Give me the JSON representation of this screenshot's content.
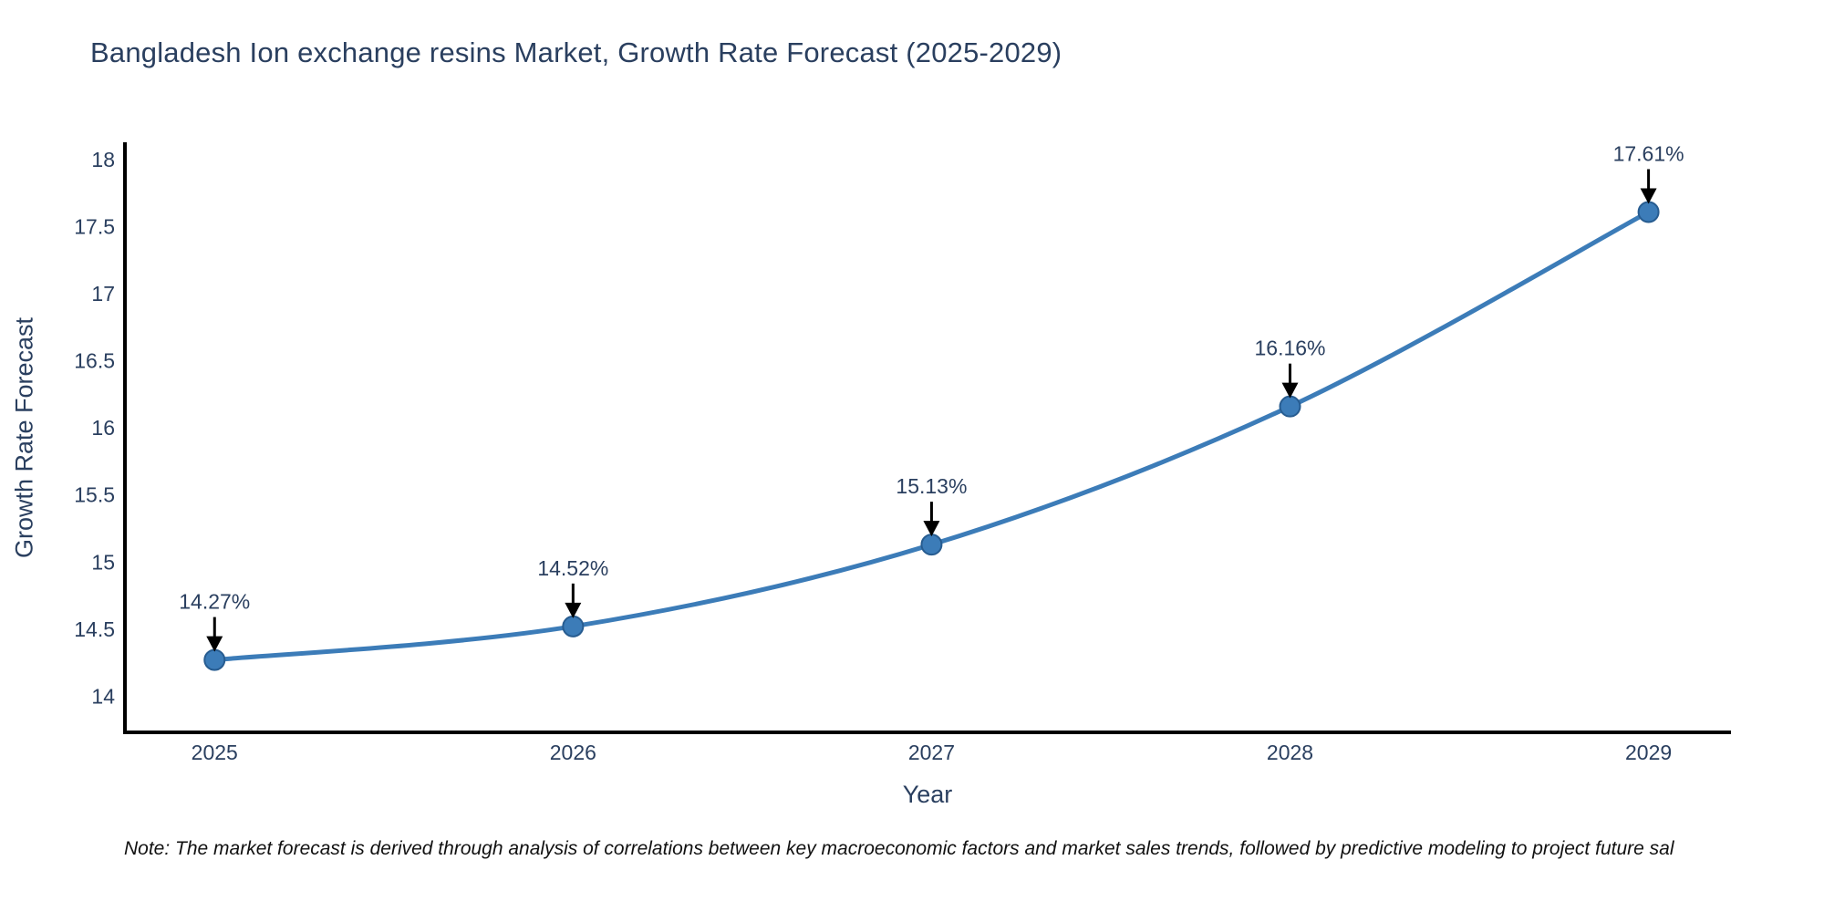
{
  "page": {
    "background": "#ffffff"
  },
  "title": {
    "text": "Bangladesh Ion exchange resins Market, Growth Rate Forecast (2025-2029)",
    "color": "#2a3f5f"
  },
  "chart_data": {
    "type": "line",
    "title": "Bangladesh Ion exchange resins Market, Growth Rate Forecast (2025-2029)",
    "x": [
      2025,
      2026,
      2027,
      2028,
      2029
    ],
    "y": [
      14.27,
      14.52,
      15.13,
      16.16,
      17.61
    ],
    "annotations": [
      "14.27%",
      "14.52%",
      "15.13%",
      "16.16%",
      "17.61%"
    ],
    "xlabel": "Year",
    "ylabel": "Growth Rate Forecast",
    "xlim": [
      2024.75,
      2029.23
    ],
    "ylim": [
      13.73,
      18.13
    ],
    "xticks": [
      2025,
      2026,
      2027,
      2028,
      2029
    ],
    "xtick_labels": [
      "2025",
      "2026",
      "2027",
      "2028",
      "2029"
    ],
    "yticks": [
      14,
      14.5,
      15,
      15.5,
      16,
      16.5,
      17,
      17.5,
      18
    ],
    "ytick_labels": [
      "14",
      "14.5",
      "15",
      "15.5",
      "16",
      "16.5",
      "17",
      "17.5",
      "18"
    ],
    "grid": false,
    "legend": "none",
    "line_shape": "spline",
    "line_color": "#3c7cb8",
    "marker_color": "#3c7cb8",
    "marker_edge_color": "#275c90",
    "axis_color": "#000000",
    "tick_label_color": "#2a3f5f",
    "annotation_text_color": "#2a3f5f",
    "annotation_arrow_color": "#000000"
  },
  "note": {
    "text": "Note: The market forecast is derived through analysis of correlations between key macroeconomic factors and market sales trends, followed by predictive modeling to project future sal"
  }
}
